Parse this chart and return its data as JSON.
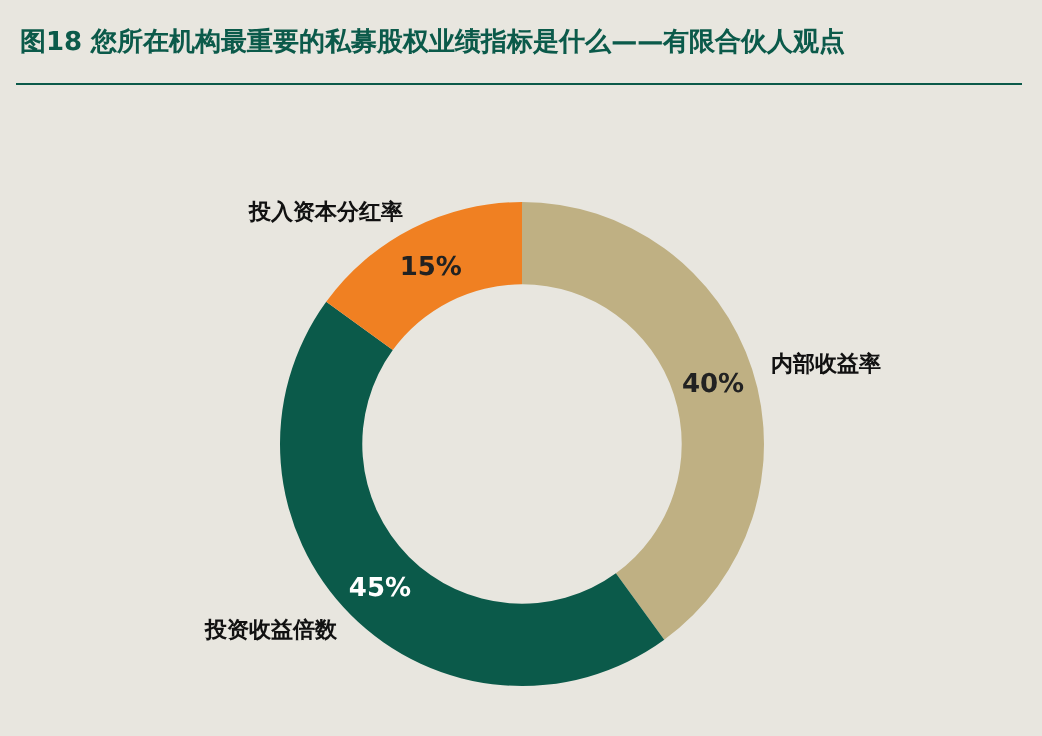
{
  "chart_data": {
    "type": "donut",
    "title": "图18 您所在机构最重要的私募股权业绩指标是什么——有限合伙人观点",
    "categories": [
      "内部收益率",
      "投资收益倍数",
      "投入资本分红率"
    ],
    "values": [
      40,
      45,
      15
    ],
    "colors": [
      "#bfb083",
      "#0b5a4a",
      "#f08022"
    ],
    "value_labels": [
      "40%",
      "45%",
      "15%"
    ]
  }
}
